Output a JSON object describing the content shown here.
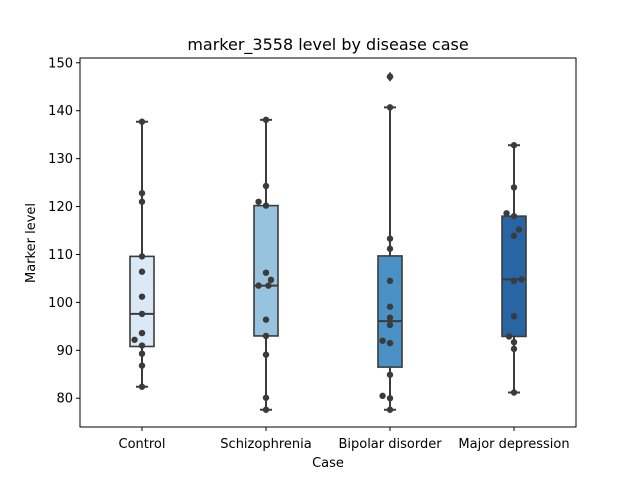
{
  "chart_data": {
    "type": "box",
    "title": "marker_3558 level by disease case",
    "xlabel": "Case",
    "ylabel": "Marker level",
    "ylim": [
      74,
      151
    ],
    "yticks": [
      80,
      90,
      100,
      110,
      120,
      130,
      140,
      150
    ],
    "grid": false,
    "categories": [
      "Control",
      "Schizophrenia",
      "Bipolar disorder",
      "Major depression"
    ],
    "box_colors": [
      "#dbe9f6",
      "#97c3de",
      "#4a91c5",
      "#2765a5"
    ],
    "line_color": "#3b3b3b",
    "point_color": "#3b3b3b",
    "boxes": [
      {
        "q1": 90.8,
        "median": 97.6,
        "q3": 109.6,
        "whisker_low": 82.4,
        "whisker_high": 137.7,
        "outliers": []
      },
      {
        "q1": 93.0,
        "median": 103.5,
        "q3": 120.2,
        "whisker_low": 77.6,
        "whisker_high": 138.1,
        "outliers": []
      },
      {
        "q1": 86.5,
        "median": 96.1,
        "q3": 109.7,
        "whisker_low": 77.6,
        "whisker_high": 140.7,
        "outliers": [
          147.1
        ]
      },
      {
        "q1": 92.9,
        "median": 104.8,
        "q3": 118.0,
        "whisker_low": 81.2,
        "whisker_high": 132.8,
        "outliers": []
      }
    ],
    "points": [
      {
        "category": "Control",
        "values": [
          137.7,
          122.8,
          121.0,
          109.6,
          106.4,
          101.2,
          97.6,
          93.6,
          92.2,
          91.0,
          89.3,
          86.8,
          82.4
        ],
        "offsets": [
          0,
          0,
          0,
          0,
          0,
          0,
          0,
          0,
          -0.06,
          0,
          0,
          0,
          0
        ]
      },
      {
        "category": "Schizophrenia",
        "values": [
          138.1,
          124.3,
          121.0,
          120.2,
          106.2,
          104.7,
          103.5,
          103.5,
          96.4,
          93.0,
          89.1,
          80.1,
          77.6
        ],
        "offsets": [
          0,
          0,
          -0.06,
          0,
          0,
          0.04,
          -0.06,
          0.02,
          0,
          0,
          0,
          0,
          0
        ]
      },
      {
        "category": "Bipolar disorder",
        "values": [
          147.1,
          140.7,
          113.3,
          111.2,
          104.5,
          99.1,
          96.8,
          95.3,
          92.0,
          91.5,
          84.9,
          80.5,
          80.0,
          77.6
        ],
        "offsets": [
          0,
          0,
          0,
          0,
          0,
          0,
          0,
          0,
          -0.06,
          0,
          0,
          -0.06,
          0,
          0
        ]
      },
      {
        "category": "Major depression",
        "values": [
          132.8,
          124.0,
          118.6,
          118.0,
          115.2,
          113.9,
          104.8,
          104.5,
          97.1,
          92.9,
          91.7,
          90.3,
          81.2
        ],
        "offsets": [
          0,
          0,
          -0.06,
          0,
          0.04,
          0,
          0.06,
          0,
          0,
          -0.04,
          0,
          0,
          0
        ]
      }
    ]
  }
}
